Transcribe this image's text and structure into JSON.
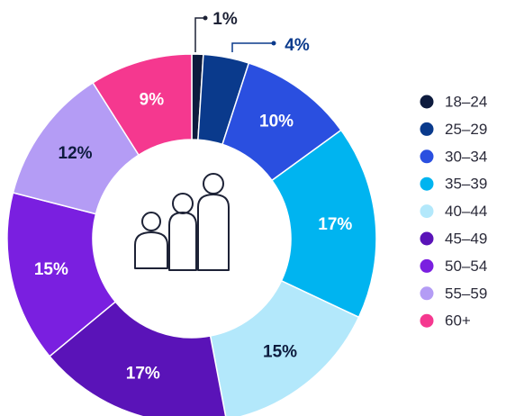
{
  "chart_data": {
    "type": "donut",
    "categories": [
      "18–24",
      "25–29",
      "30–34",
      "35–39",
      "40–44",
      "45–49",
      "50–54",
      "55–59",
      "60+"
    ],
    "values": [
      1,
      4,
      10,
      17,
      15,
      17,
      15,
      12,
      9
    ],
    "value_labels": [
      "1%",
      "4%",
      "10%",
      "17%",
      "15%",
      "17%",
      "15%",
      "12%",
      "9%"
    ],
    "colors": [
      "#0d1b3e",
      "#0a3a8c",
      "#2a4fe0",
      "#00b4f0",
      "#b3e8fb",
      "#5a13b8",
      "#7a1fe0",
      "#b49cf5",
      "#f5388f"
    ],
    "legend": "right"
  }
}
